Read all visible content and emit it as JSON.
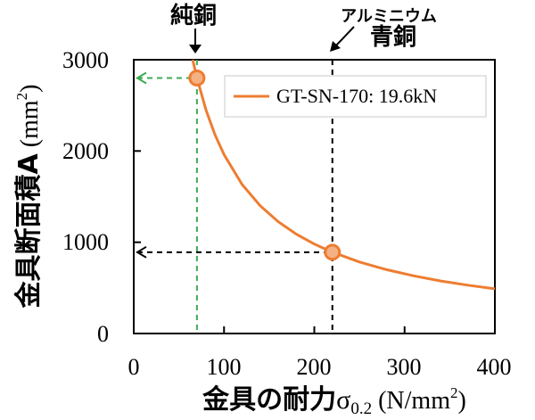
{
  "chart_data": {
    "type": "line",
    "title": "",
    "xlabel_main": "金具の耐力",
    "xlabel_sigma": "σ",
    "xlabel_sub": "0.2",
    "xlabel_unit_pre": " (N/mm",
    "xlabel_unit_sup": "2",
    "xlabel_unit_post": ")",
    "ylabel_main": "金具断面積A",
    "ylabel_unit_pre": " (mm",
    "ylabel_unit_sup": "2",
    "ylabel_unit_post": ")",
    "xlim": [
      0,
      400
    ],
    "ylim": [
      0,
      3000
    ],
    "x_ticks": [
      0,
      100,
      200,
      300,
      400
    ],
    "y_ticks": [
      0,
      1000,
      2000,
      3000
    ],
    "x_tick_labels": [
      "0",
      "100",
      "200",
      "300",
      "400"
    ],
    "y_tick_labels": [
      "0",
      "1000",
      "2000",
      "3000"
    ],
    "grid": false,
    "legend_position": "top-right",
    "series": [
      {
        "name": "GT-SN-170: 19.6kN",
        "color": "#ed7d31",
        "formula": "y = 196000 / x",
        "x": [
          65.3,
          70,
          80,
          90,
          100,
          120,
          140,
          160,
          180,
          200,
          220,
          250,
          280,
          310,
          340,
          370,
          400
        ],
        "y": [
          3000,
          2800,
          2450,
          2178,
          1960,
          1633,
          1400,
          1225,
          1089,
          980,
          891,
          784,
          700,
          632,
          576,
          530,
          490
        ]
      }
    ],
    "highlight_points": [
      {
        "x": 70,
        "y": 2800,
        "color": "#ed7d31",
        "fill": "#f4b183"
      },
      {
        "x": 220,
        "y": 891,
        "color": "#ed7d31",
        "fill": "#f4b183"
      }
    ],
    "reference_lines": [
      {
        "label": "純銅",
        "x": 70,
        "y": 2800,
        "color": "#4caf50"
      },
      {
        "label": "青銅",
        "label_above": "アルミニウム",
        "x": 220,
        "y": 891,
        "color": "#000000"
      }
    ]
  }
}
